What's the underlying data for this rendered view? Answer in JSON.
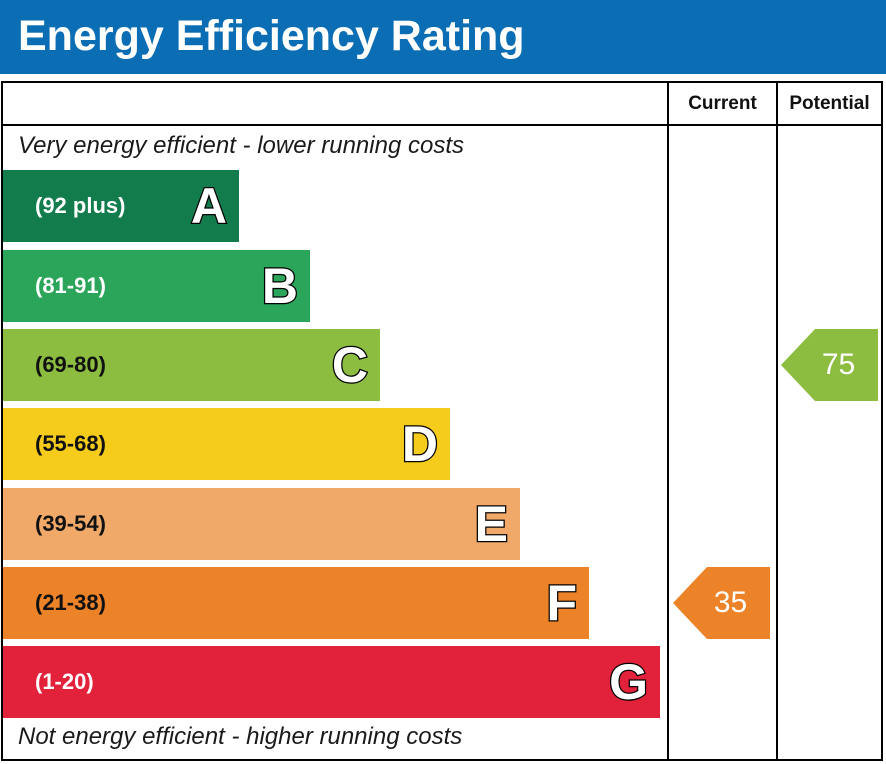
{
  "title": "Energy Efficiency Rating",
  "columns": {
    "current": "Current",
    "potential": "Potential"
  },
  "captions": {
    "top": "Very energy efficient - lower running costs",
    "bottom": "Not energy efficient - higher running costs"
  },
  "chart_data": {
    "type": "bar",
    "categories": [
      "A",
      "B",
      "C",
      "D",
      "E",
      "F",
      "G"
    ],
    "ranges": [
      "(92 plus)",
      "(81-91)",
      "(69-80)",
      "(55-68)",
      "(39-54)",
      "(21-38)",
      "(1-20)"
    ],
    "band_colors": [
      "#137c4d",
      "#2aa55a",
      "#8cbd40",
      "#f5cc1b",
      "#f1a96a",
      "#ec8329",
      "#e2213b"
    ],
    "range_text_colors": [
      "#ffffff",
      "#ffffff",
      "#111111",
      "#111111",
      "#111111",
      "#111111",
      "#ffffff"
    ],
    "current": {
      "value": 35,
      "band": "F",
      "color": "#ec8329"
    },
    "potential": {
      "value": 75,
      "band": "C",
      "color": "#8cbd40"
    }
  }
}
